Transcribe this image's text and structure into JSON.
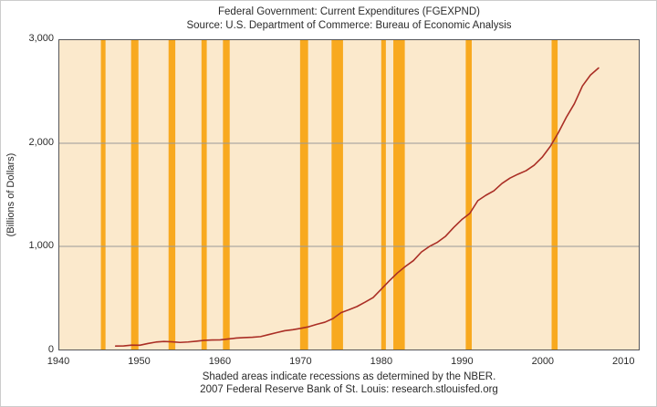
{
  "header": {
    "title": "Federal Government: Current Expenditures (FGEXPND)",
    "subtitle": "Source: U.S. Department of Commerce: Bureau of Economic Analysis"
  },
  "footer": {
    "note": "Shaded areas indicate recessions as determined by the NBER.",
    "source": "2007 Federal Reserve Bank of St. Louis: research.stlouisfed.org"
  },
  "colors": {
    "page_bg": "#ffffff",
    "plot_bg": "#FBE9CC",
    "recession_band": "#F8A91F",
    "line": "#AA2E25",
    "grid": "#999999",
    "border": "#55565A",
    "text": "#2b2b2b"
  },
  "chart_data": {
    "type": "line",
    "title": "Federal Government: Current Expenditures (FGEXPND)",
    "subtitle": "Source: U.S. Department of Commerce: Bureau of Economic Analysis",
    "xlabel": "",
    "ylabel": "(Billions of Dollars)",
    "xlim": [
      1940,
      2012
    ],
    "ylim": [
      0,
      3000
    ],
    "grid_on": true,
    "grid_y": [
      1000,
      2000
    ],
    "legend": "none",
    "x_ticks": [
      {
        "year": 1940,
        "label": "1940"
      },
      {
        "year": 1950,
        "label": "1950"
      },
      {
        "year": 1960,
        "label": "1960"
      },
      {
        "year": 1970,
        "label": "1970"
      },
      {
        "year": 1980,
        "label": "1980"
      },
      {
        "year": 1990,
        "label": "1990"
      },
      {
        "year": 2000,
        "label": "2000"
      },
      {
        "year": 2010,
        "label": "2010"
      }
    ],
    "y_ticks": [
      {
        "value": 0,
        "label": "0"
      },
      {
        "value": 1000,
        "label": "1,000"
      },
      {
        "value": 2000,
        "label": "2,000"
      },
      {
        "value": 3000,
        "label": "3,000"
      }
    ],
    "recessions": [
      [
        1945.17,
        1945.75
      ],
      [
        1948.92,
        1949.83
      ],
      [
        1953.58,
        1954.42
      ],
      [
        1957.67,
        1958.33
      ],
      [
        1960.33,
        1961.17
      ],
      [
        1969.92,
        1970.92
      ],
      [
        1973.83,
        1975.25
      ],
      [
        1980.0,
        1980.58
      ],
      [
        1981.5,
        1982.92
      ],
      [
        1990.5,
        1991.25
      ],
      [
        2001.17,
        2001.92
      ]
    ],
    "series": [
      {
        "name": "FGEXPND",
        "x": [
          1947,
          1948,
          1949,
          1950,
          1951,
          1952,
          1953,
          1954,
          1955,
          1956,
          1957,
          1958,
          1959,
          1960,
          1961,
          1962,
          1963,
          1964,
          1965,
          1966,
          1967,
          1968,
          1969,
          1970,
          1971,
          1972,
          1973,
          1974,
          1975,
          1976,
          1977,
          1978,
          1979,
          1980,
          1981,
          1982,
          1983,
          1984,
          1985,
          1986,
          1987,
          1988,
          1989,
          1990,
          1991,
          1992,
          1993,
          1994,
          1995,
          1996,
          1997,
          1998,
          1999,
          2000,
          2001,
          2002,
          2003,
          2004,
          2005,
          2006,
          2007
        ],
        "values": [
          33,
          35,
          42,
          41,
          58,
          72,
          78,
          75,
          69,
          73,
          80,
          89,
          92,
          93,
          102,
          111,
          115,
          119,
          125,
          144,
          164,
          182,
          192,
          205,
          221,
          245,
          265,
          300,
          357,
          386,
          417,
          459,
          504,
          585,
          665,
          742,
          805,
          862,
          946,
          1000,
          1041,
          1099,
          1183,
          1260,
          1320,
          1444,
          1496,
          1540,
          1610,
          1662,
          1701,
          1734,
          1787,
          1864,
          1969,
          2101,
          2252,
          2383,
          2556,
          2661,
          2730
        ]
      }
    ]
  }
}
